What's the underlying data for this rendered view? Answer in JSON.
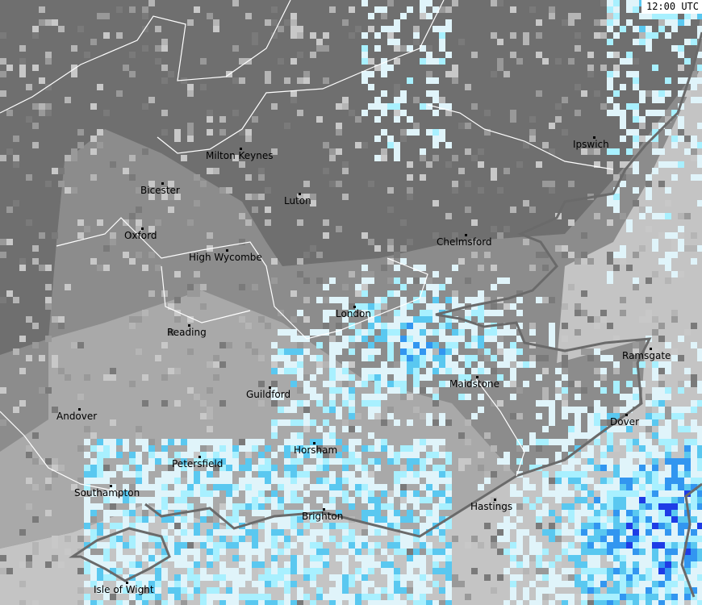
{
  "timestamp": "12:00 UTC",
  "cities": [
    {
      "name": "Milton Keynes"
    },
    {
      "name": "Bicester"
    },
    {
      "name": "Luton"
    },
    {
      "name": "Ipswich"
    },
    {
      "name": "Oxford"
    },
    {
      "name": "High Wycombe"
    },
    {
      "name": "Chelmsford"
    },
    {
      "name": "London"
    },
    {
      "name": "Reading"
    },
    {
      "name": "Ramsgate"
    },
    {
      "name": "Maidstone"
    },
    {
      "name": "Guildford"
    },
    {
      "name": "Andover"
    },
    {
      "name": "Dover"
    },
    {
      "name": "Horsham"
    },
    {
      "name": "Petersfield"
    },
    {
      "name": "Southampton"
    },
    {
      "name": "Brighton"
    },
    {
      "name": "Hastings"
    },
    {
      "name": "Isle of Wight"
    }
  ],
  "colors": {
    "land_dark": "#6f6f6f",
    "land_mid": "#8c8c8c",
    "land_light": "#a9a9a9",
    "sea": "#c4c4c4",
    "rain_very_light": "#e0f4fa",
    "rain_light": "#a8f0ff",
    "rain_moderate": "#5ac8f0",
    "rain_heavy": "#3296f0",
    "rain_very_heavy": "#1e3ce6",
    "coastline": "#6a6a6a",
    "boundary": "#ffffff"
  }
}
